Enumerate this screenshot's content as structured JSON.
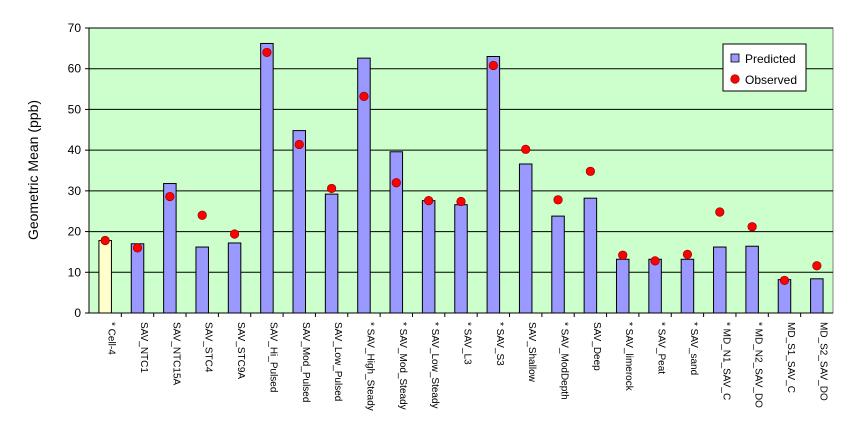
{
  "chart_data": {
    "type": "bar",
    "title": "",
    "xlabel": "",
    "ylabel": "Geometric Mean (ppb)",
    "ylim": [
      0,
      70
    ],
    "yticks": [
      0,
      10,
      20,
      30,
      40,
      50,
      60,
      70
    ],
    "grid": "horizontal",
    "legend_position": "top-right",
    "plot_background": "#ccffcc",
    "categories": [
      "* Cell-4",
      "SAV_NTC1",
      "SAV_NTC15A",
      "SAV_STC4",
      "SAV_STC9A",
      "SAV_Hi_Pulsed",
      "SAV_Mod_Pulsed",
      "SAV_Low_Pulsed",
      "* SAV_High_Steady",
      "* SAV_Mod_Steady",
      "* SAV_Low_Steady",
      "* SAV_L3",
      "* SAV_S3",
      "SAV_Shallow",
      "* SAV_ModDepth",
      "SAV_Deep",
      "* SAV_limerock",
      "* SAV_Peat",
      "* SAV_sand",
      "* MD_N1_SAV_C",
      "* MD_N2_SAV_DO",
      "MD_S1_SAV_C",
      "MD_S2_SAV_DO"
    ],
    "series": [
      {
        "name": "Predicted",
        "kind": "bar",
        "color": "#9999ff",
        "highlight": {
          "index": 0,
          "color": "#ffffcc"
        },
        "values": [
          17.8,
          17.0,
          31.8,
          16.2,
          17.2,
          66.2,
          44.8,
          29.2,
          62.6,
          39.6,
          27.6,
          26.6,
          63.0,
          36.6,
          23.8,
          28.2,
          13.2,
          13.2,
          13.2,
          16.2,
          16.4,
          8.2,
          8.4
        ]
      },
      {
        "name": "Observed",
        "kind": "marker",
        "color": "#ff0000",
        "values": [
          17.8,
          16.0,
          28.6,
          24.0,
          19.4,
          64.0,
          41.4,
          30.6,
          53.2,
          32.0,
          27.6,
          27.4,
          60.8,
          40.2,
          27.8,
          34.8,
          14.2,
          12.8,
          14.4,
          24.8,
          21.2,
          8.0,
          11.6
        ]
      }
    ]
  }
}
